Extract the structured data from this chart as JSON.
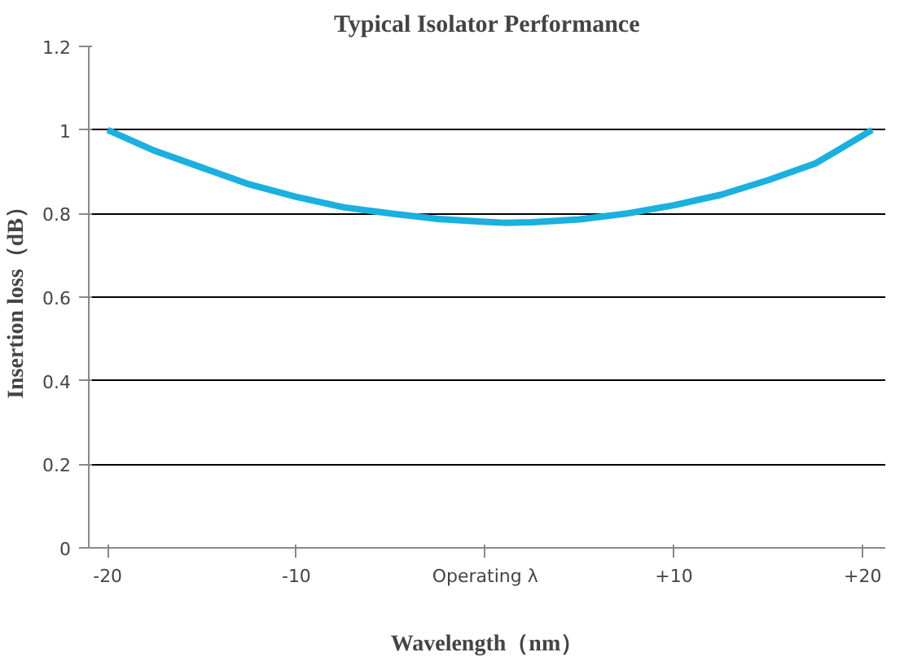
{
  "chart_data": {
    "type": "line",
    "title": "Typical Isolator Performance",
    "xlabel": "Wavelength（nm）",
    "ylabel": "Insertion loss（dB）",
    "x": [
      -20,
      -17.5,
      -15,
      -12.5,
      -10,
      -7.5,
      -5,
      -2.5,
      0,
      1,
      2.5,
      5,
      7.5,
      10,
      12.5,
      15,
      17.5,
      20.5
    ],
    "series": [
      {
        "color": "#1ab0e0",
        "values": [
          1.0,
          0.95,
          0.91,
          0.87,
          0.84,
          0.815,
          0.8,
          0.787,
          0.78,
          0.778,
          0.779,
          0.786,
          0.8,
          0.82,
          0.845,
          0.88,
          0.92,
          1.0
        ]
      }
    ],
    "xlim": [
      -21,
      21.2
    ],
    "ylim": [
      0,
      1.2
    ],
    "xticks": [
      {
        "value": -20,
        "label": "-20"
      },
      {
        "value": -10,
        "label": "-10"
      },
      {
        "value": 0,
        "label": "Operating λ"
      },
      {
        "value": 10,
        "label": "+10"
      },
      {
        "value": 20,
        "label": "+20"
      }
    ],
    "yticks": [
      0,
      0.2,
      0.4,
      0.6,
      0.8,
      1,
      1.2
    ],
    "grid": "y",
    "marker": "none",
    "line_style": "solid"
  }
}
